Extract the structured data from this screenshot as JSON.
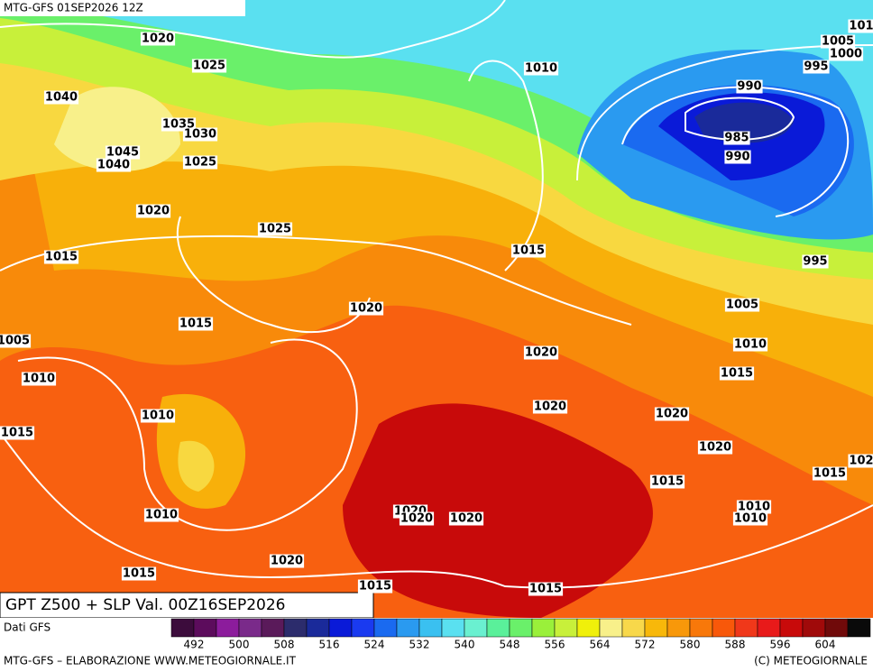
{
  "header": {
    "title": "MTG-GFS 01SEP2026 12Z"
  },
  "caption": "GPT Z500 + SLP Val. 00Z16SEP2026",
  "source": "Dati GFS",
  "footer": {
    "left": "MTG-GFS – ELABORAZIONE WWW.METEOGIORNALE.IT",
    "right": "(C) METEOGIORNALE"
  },
  "isobar_labels": [
    "1020",
    "1025",
    "1040",
    "1035",
    "1030",
    "1045",
    "1040",
    "1025",
    "1020",
    "1025",
    "1015",
    "1015",
    "1020",
    "1005",
    "1010",
    "1010",
    "1015",
    "1010",
    "1015",
    "1020",
    "1015",
    "1020",
    "1020",
    "1020",
    "1015",
    "1015",
    "1010",
    "1010",
    "1020",
    "1015",
    "102",
    "1020",
    "1020",
    "1020",
    "1015",
    "1010",
    "1005",
    "995",
    "1015",
    "990",
    "985",
    "990",
    "995",
    "1000",
    "1005",
    "101",
    "1010"
  ],
  "colorbar": {
    "colors": [
      "#3c0c3c",
      "#5c0c5c",
      "#8c1c9c",
      "#7a2a8a",
      "#5a1a5a",
      "#2c2c6c",
      "#1a2a9a",
      "#0a1ad8",
      "#1a3af0",
      "#1a6af0",
      "#2a9af0",
      "#3ac0f0",
      "#5ae0f0",
      "#6af0d0",
      "#5af09a",
      "#6af06a",
      "#9af03a",
      "#c8f03a",
      "#f0f00a",
      "#f8f08a",
      "#f8d84a",
      "#f8b80a",
      "#f8980a",
      "#f8780a",
      "#f8580a",
      "#f0381a",
      "#e81a1a",
      "#c80a0a",
      "#a00a0a",
      "#700a0a",
      "#0a0a0a"
    ],
    "ticks": [
      "492",
      "500",
      "508",
      "516",
      "524",
      "532",
      "540",
      "548",
      "556",
      "564",
      "572",
      "580",
      "588",
      "596",
      "604"
    ]
  }
}
